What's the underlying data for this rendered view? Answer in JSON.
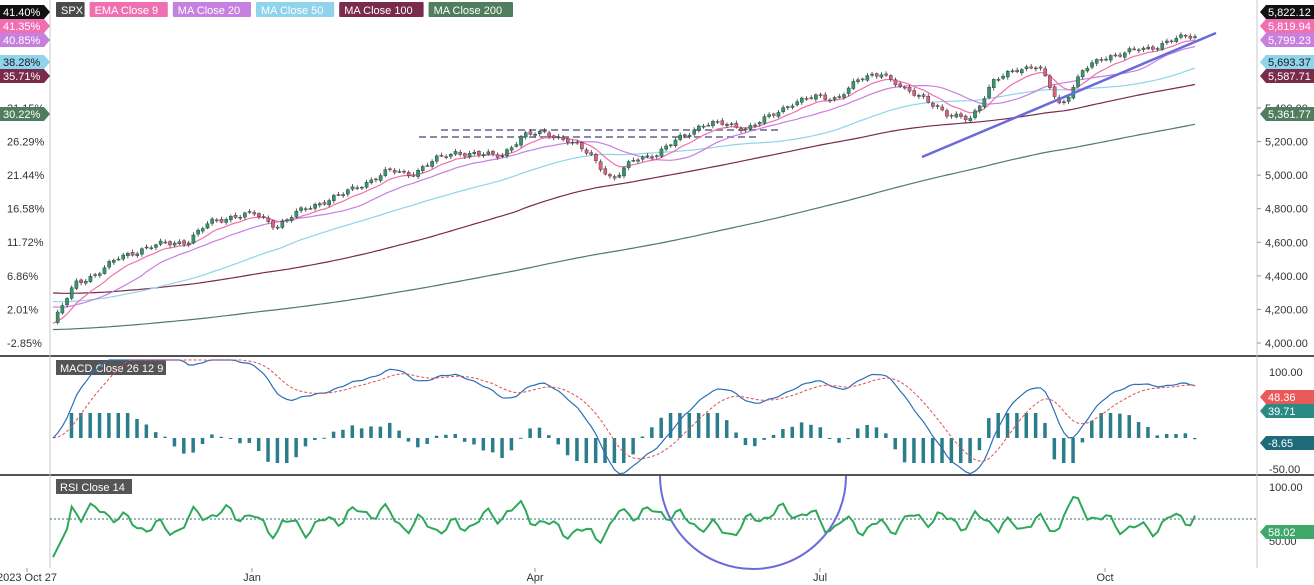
{
  "chart_data": [
    {
      "type": "candlestick",
      "symbol": "SPX",
      "legend": [
        {
          "label": "SPX",
          "color": "#4a4a4a"
        },
        {
          "label": "EMA Close 9",
          "color": "#f06fb0"
        },
        {
          "label": "MA Close 20",
          "color": "#c77fe0"
        },
        {
          "label": "MA Close 50",
          "color": "#8fd4ec"
        },
        {
          "label": "MA Close 100",
          "color": "#7a2a4a"
        },
        {
          "label": "MA Close 200",
          "color": "#4f7d5d"
        }
      ],
      "y_right_ticks": [
        "4,000.00",
        "4,200.00",
        "4,400.00",
        "4,600.00",
        "4,800.00",
        "5,000.00",
        "5,200.00",
        "5,400.00"
      ],
      "y_left_ticks": [
        "-2.85%",
        "2.01%",
        "6.86%",
        "11.72%",
        "16.58%",
        "21.44%",
        "26.29%",
        "31.15%"
      ],
      "ylim": [
        3990,
        5830
      ],
      "last_values": [
        {
          "label": "5,822.12",
          "value": 5822.12,
          "color": "#111111"
        },
        {
          "label": "5,819.94",
          "value": 5819.94,
          "color": "#f06fb0"
        },
        {
          "label": "5,799.23",
          "value": 5799.23,
          "color": "#c77fe0"
        },
        {
          "label": "5,693.37",
          "value": 5693.37,
          "color": "#8fd4ec"
        },
        {
          "label": "5,587.71",
          "value": 5587.71,
          "color": "#7a2a4a"
        },
        {
          "label": "5,361.77",
          "value": 5361.77,
          "color": "#4f7d5d"
        }
      ],
      "pct_values": [
        {
          "label": "41.40%",
          "color": "#111111"
        },
        {
          "label": "41.35%",
          "color": "#f06fb0"
        },
        {
          "label": "40.85%",
          "color": "#c77fe0"
        },
        {
          "label": "38.28%",
          "color": "#8fd4ec"
        },
        {
          "label": "35.71%",
          "color": "#7a2a4a"
        },
        {
          "label": "30.22%",
          "color": "#4f7d5d"
        }
      ],
      "close_series": [
        {
          "date": "2023-10-27",
          "close": 4117
        },
        {
          "date": "2023-11-03",
          "close": 4358
        },
        {
          "date": "2023-11-10",
          "close": 4415
        },
        {
          "date": "2023-11-17",
          "close": 4514
        },
        {
          "date": "2023-11-24",
          "close": 4559
        },
        {
          "date": "2023-12-01",
          "close": 4594
        },
        {
          "date": "2023-12-08",
          "close": 4604
        },
        {
          "date": "2023-12-15",
          "close": 4719
        },
        {
          "date": "2023-12-22",
          "close": 4754
        },
        {
          "date": "2023-12-29",
          "close": 4769
        },
        {
          "date": "2024-01-05",
          "close": 4697
        },
        {
          "date": "2024-01-12",
          "close": 4783
        },
        {
          "date": "2024-01-19",
          "close": 4839
        },
        {
          "date": "2024-01-26",
          "close": 4890
        },
        {
          "date": "2024-02-02",
          "close": 4958
        },
        {
          "date": "2024-02-09",
          "close": 5026
        },
        {
          "date": "2024-02-16",
          "close": 5005
        },
        {
          "date": "2024-02-23",
          "close": 5088
        },
        {
          "date": "2024-03-01",
          "close": 5137
        },
        {
          "date": "2024-03-08",
          "close": 5123
        },
        {
          "date": "2024-03-15",
          "close": 5117
        },
        {
          "date": "2024-03-22",
          "close": 5234
        },
        {
          "date": "2024-03-28",
          "close": 5254
        },
        {
          "date": "2024-04-05",
          "close": 5204
        },
        {
          "date": "2024-04-12",
          "close": 5123
        },
        {
          "date": "2024-04-19",
          "close": 4967
        },
        {
          "date": "2024-04-26",
          "close": 5100
        },
        {
          "date": "2024-05-03",
          "close": 5127
        },
        {
          "date": "2024-05-10",
          "close": 5222
        },
        {
          "date": "2024-05-17",
          "close": 5303
        },
        {
          "date": "2024-05-24",
          "close": 5305
        },
        {
          "date": "2024-05-31",
          "close": 5278
        },
        {
          "date": "2024-06-07",
          "close": 5347
        },
        {
          "date": "2024-06-14",
          "close": 5431
        },
        {
          "date": "2024-06-21",
          "close": 5464
        },
        {
          "date": "2024-06-28",
          "close": 5460
        },
        {
          "date": "2024-07-05",
          "close": 5567
        },
        {
          "date": "2024-07-12",
          "close": 5615
        },
        {
          "date": "2024-07-19",
          "close": 5505
        },
        {
          "date": "2024-07-26",
          "close": 5459
        },
        {
          "date": "2024-08-02",
          "close": 5346
        },
        {
          "date": "2024-08-09",
          "close": 5344
        },
        {
          "date": "2024-08-16",
          "close": 5554
        },
        {
          "date": "2024-08-23",
          "close": 5634
        },
        {
          "date": "2024-08-30",
          "close": 5648
        },
        {
          "date": "2024-09-06",
          "close": 5408
        },
        {
          "date": "2024-09-13",
          "close": 5626
        },
        {
          "date": "2024-09-20",
          "close": 5702
        },
        {
          "date": "2024-09-27",
          "close": 5738
        },
        {
          "date": "2024-10-04",
          "close": 5751
        },
        {
          "date": "2024-10-11",
          "close": 5815
        },
        {
          "date": "2024-10-18",
          "close": 5822
        }
      ],
      "x_ticks": [
        "2023 Oct 27",
        "Jan",
        "Apr",
        "Jul",
        "Oct"
      ]
    },
    {
      "type": "line",
      "title": "MACD Close 26 12 9",
      "y_ticks": [
        "100.00",
        "-50.00"
      ],
      "ylim": [
        -50,
        100
      ],
      "last_values": [
        {
          "label": "48.36",
          "value": 48.36,
          "color": "#e85a5a"
        },
        {
          "label": "39.71",
          "value": 39.71,
          "color": "#2a8a84"
        },
        {
          "label": "-8.65",
          "value": -8.65,
          "color": "#1f6b7a"
        }
      ]
    },
    {
      "type": "line",
      "title": "RSI Close 14",
      "y_ticks": [
        "100.00",
        "50.00"
      ],
      "ylim": [
        0,
        100
      ],
      "overbought": 70,
      "last_values": [
        {
          "label": "58.02",
          "value": 58.02,
          "color": "#3fa86a"
        }
      ]
    }
  ]
}
